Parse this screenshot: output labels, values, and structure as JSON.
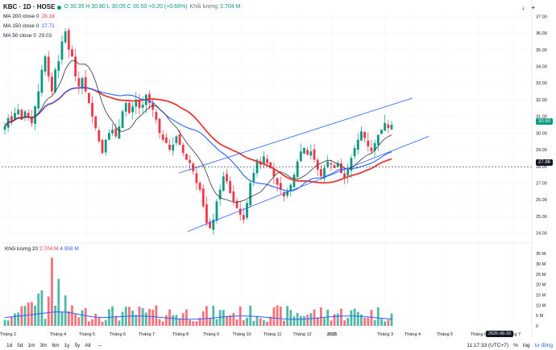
{
  "legend": {
    "symbol": "KBC · 1D · HOSE",
    "ohlc": "O 30.35  H 30.80  L 30.05  C 30.50  +0.20 (+0.66%)",
    "volume_label": "Khối lượng",
    "volume_value": "2.704 M",
    "ma200": "MA 200 close 0",
    "ma200_val": "28.18",
    "ma150": "MA 150 close 0",
    "ma150_val": "27.71",
    "ma50": "MA 50 close 0",
    "ma50_val": "29.03"
  },
  "vol_legend": {
    "label": "Khối lượng 20",
    "v1": "2.704 M",
    "v2": "4.958 M"
  },
  "price_axis": [
    "37.00",
    "36.00",
    "35.00",
    "34.00",
    "33.00",
    "32.00",
    "31.00",
    "30.00",
    "29.00",
    "28.00",
    "27.00",
    "26.00",
    "25.00",
    "24.00"
  ],
  "volume_axis": [
    "35 M",
    "30 M",
    "25 M",
    "20 M",
    "15 M",
    "10 M",
    "5 M",
    "0"
  ],
  "time_axis": [
    "Tháng 2",
    "Tháng 4",
    "Tháng 5",
    "Tháng 6",
    "Tháng 7",
    "Tháng 8",
    "Tháng 9",
    "Tháng 10",
    "Tháng 11",
    "Tháng 12",
    "2025",
    "Tháng 3",
    "Tháng 4",
    "Tháng 5",
    "Tháng 6",
    "Tháng 7"
  ],
  "last_price": "30.50",
  "ma_price": "27.96",
  "cursor_date": "2025-06-20",
  "ranges": [
    "1d",
    "5d",
    "1m",
    "3m",
    "6m",
    "1y",
    "5y",
    "All"
  ],
  "clock": "11:17:33 (UTC+7)",
  "percent": "%",
  "log": "log",
  "auto": "tự động",
  "colors": {
    "up": "#089981",
    "down": "#f23645",
    "ma200": "#e53935",
    "ma150": "#2962ff",
    "ma50": "#333333",
    "channel": "#2962ff"
  },
  "chart_data": {
    "type": "candlestick",
    "title": "KBC · 1D · HOSE",
    "ylim": [
      23.5,
      37.5
    ],
    "closes": [
      30.4,
      30.9,
      30.7,
      31.2,
      31.4,
      30.8,
      31.3,
      31.0,
      30.6,
      31.6,
      32.5,
      33.8,
      34.6,
      33.4,
      32.5,
      33.8,
      34.3,
      35.5,
      36.1,
      35.0,
      34.6,
      33.4,
      32.8,
      33.3,
      32.5,
      31.8,
      31.0,
      30.3,
      29.5,
      28.8,
      29.6,
      30.0,
      30.2,
      29.8,
      30.4,
      31.3,
      31.8,
      31.2,
      31.6,
      32.0,
      31.5,
      31.7,
      32.3,
      31.8,
      31.4,
      30.8,
      30.0,
      29.6,
      29.4,
      29.0,
      29.3,
      29.8,
      29.3,
      28.8,
      28.4,
      28.2,
      27.7,
      27.0,
      26.6,
      25.6,
      24.6,
      24.3,
      24.8,
      25.9,
      26.6,
      27.4,
      27.1,
      26.4,
      25.9,
      25.5,
      25.1,
      24.8,
      25.8,
      27.0,
      27.6,
      28.4,
      28.1,
      28.6,
      28.2,
      27.9,
      27.4,
      26.9,
      26.6,
      26.2,
      26.5,
      26.9,
      27.5,
      28.3,
      28.9,
      29.1,
      28.7,
      28.9,
      28.4,
      27.8,
      27.4,
      27.9,
      28.3,
      28.1,
      27.9,
      28.2,
      27.6,
      27.3,
      27.8,
      28.5,
      29.1,
      29.6,
      30.1,
      29.7,
      29.2,
      28.9,
      29.4,
      29.9,
      30.2,
      30.6,
      30.3,
      30.5
    ]
  }
}
